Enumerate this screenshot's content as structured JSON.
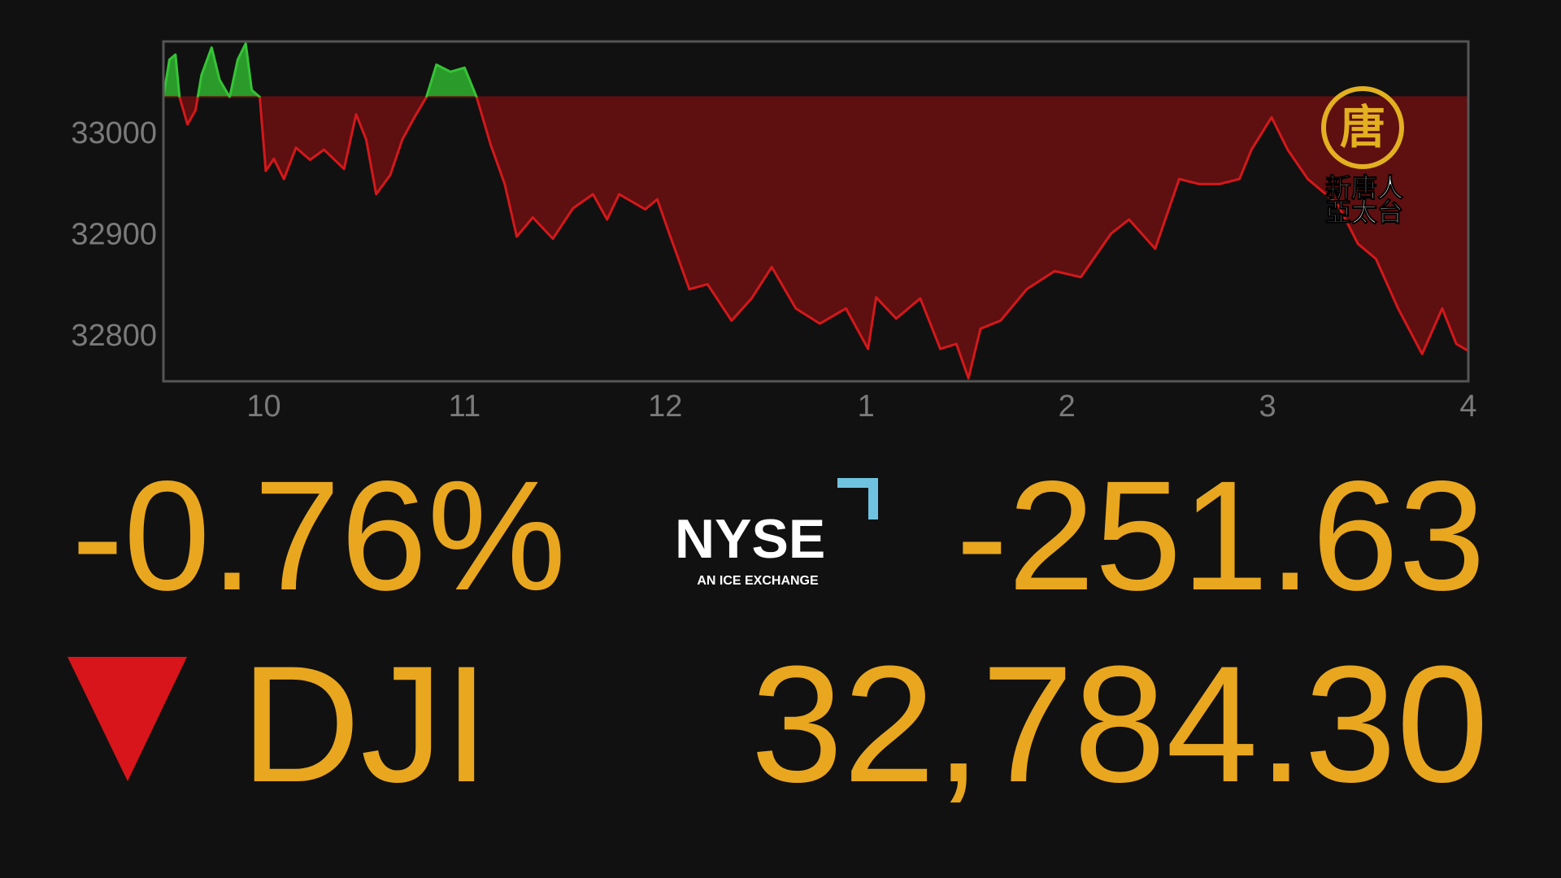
{
  "chart_data": {
    "type": "area",
    "x": [
      9.5,
      9.53,
      9.56,
      9.58,
      9.62,
      9.66,
      9.69,
      9.74,
      9.78,
      9.83,
      9.87,
      9.91,
      9.94,
      9.98,
      10.01,
      10.05,
      10.1,
      10.16,
      10.23,
      10.3,
      10.4,
      10.46,
      10.51,
      10.56,
      10.63,
      10.69,
      10.75,
      10.81,
      10.86,
      10.93,
      11.0,
      11.06,
      11.13,
      11.2,
      11.26,
      11.34,
      11.44,
      11.54,
      11.64,
      11.71,
      11.77,
      11.9,
      11.96,
      12.02,
      12.12,
      12.21,
      12.33,
      12.43,
      12.53,
      12.65,
      12.77,
      12.9,
      13.01,
      13.05,
      13.15,
      13.27,
      13.37,
      13.45,
      13.51,
      13.57,
      13.67,
      13.8,
      13.94,
      14.07,
      14.22,
      14.31,
      14.44,
      14.56,
      14.66,
      14.76,
      14.86,
      14.92,
      15.02,
      15.1,
      15.2,
      15.35,
      15.45,
      15.54,
      15.65,
      15.77,
      15.87,
      15.94,
      16.0
    ],
    "series": [
      {
        "name": "DJI",
        "color": "#d4181b",
        "up_color": "#35c435",
        "values": [
          33035,
          33072,
          33077,
          33035,
          33008,
          33022,
          33057,
          33084,
          33052,
          33035,
          33072,
          33088,
          33042,
          33035,
          32962,
          32974,
          32954,
          32985,
          32973,
          32983,
          32964,
          33018,
          32993,
          32939,
          32958,
          32993,
          33015,
          33035,
          33067,
          33060,
          33064,
          33035,
          32988,
          32949,
          32897,
          32916,
          32895,
          32925,
          32939,
          32914,
          32939,
          32924,
          32934,
          32900,
          32845,
          32850,
          32814,
          32836,
          32867,
          32826,
          32811,
          32826,
          32786,
          32837,
          32816,
          32836,
          32786,
          32791,
          32757,
          32806,
          32814,
          32845,
          32863,
          32857,
          32900,
          32914,
          32885,
          32954,
          32949,
          32949,
          32954,
          32983,
          33015,
          32983,
          32954,
          32929,
          32890,
          32875,
          32826,
          32781,
          32826,
          32791,
          32784
        ]
      }
    ],
    "xlim": [
      9.5,
      16
    ],
    "ylim": [
      32754,
      33090
    ],
    "xticks": [
      10,
      11,
      12,
      {
        "value": 13,
        "label": "1"
      },
      {
        "value": 14,
        "label": "2"
      },
      {
        "value": 15,
        "label": "3"
      },
      {
        "value": 16,
        "label": "4"
      }
    ],
    "yticks": [
      32800,
      32900,
      33000
    ],
    "grid": false
  },
  "quote": {
    "percent_change": "-0.76%",
    "symbol": "DJI",
    "point_change": "-251.63",
    "price": "32,784.30"
  },
  "exchange": {
    "name": "NYSE",
    "tagline": "AN ICE EXCHANGE"
  },
  "logo": {
    "emblem": "唐",
    "line1": "新唐人",
    "line2": "亞太台"
  }
}
